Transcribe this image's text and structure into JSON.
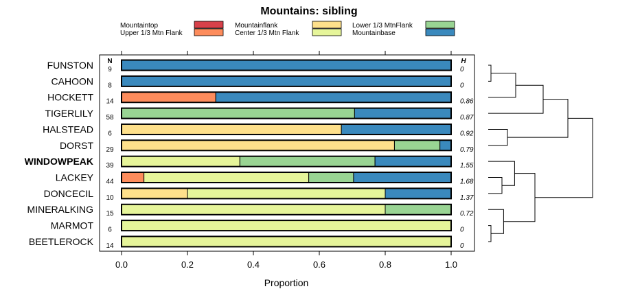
{
  "chart_data": {
    "type": "bar",
    "orientation": "horizontal",
    "stacked": true,
    "title": "Mountains: sibling",
    "xlabel": "Proportion",
    "xlim": [
      0,
      1
    ],
    "xticks": [
      "0.0",
      "0.2",
      "0.4",
      "0.6",
      "0.8",
      "1.0"
    ],
    "xtick_values": [
      0,
      0.2,
      0.4,
      0.6,
      0.8,
      1.0
    ],
    "n_header": "N",
    "h_header": "H",
    "legend": [
      {
        "name": "Mountaintop",
        "color": "#d7404a"
      },
      {
        "name": "Upper 1/3 Mtn Flank",
        "color": "#fd8c5c"
      },
      {
        "name": "Mountainflank",
        "color": "#fee08b"
      },
      {
        "name": "Center 1/3 Mtn Flank",
        "color": "#e6f59a"
      },
      {
        "name": "Lower 1/3 MtnFlank",
        "color": "#99d493"
      },
      {
        "name": "Mountainbase",
        "color": "#3a89bd"
      }
    ],
    "categories": [
      "FUNSTON",
      "CAHOON",
      "HOCKETT",
      "TIGERLILY",
      "HALSTEAD",
      "DORST",
      "WINDOWPEAK",
      "LACKEY",
      "DONCECIL",
      "MINERALKING",
      "MARMOT",
      "BEETLEROCK"
    ],
    "highlighted": "WINDOWPEAK",
    "N": [
      "9",
      "8",
      "14",
      "58",
      "6",
      "29",
      "39",
      "44",
      "10",
      "15",
      "6",
      "14"
    ],
    "H": [
      "0",
      "0",
      "0.86",
      "0.87",
      "0.92",
      "0.79",
      "1.55",
      "1.68",
      "1.37",
      "0.72",
      "0",
      "0"
    ],
    "series": [
      {
        "name": "Mountaintop",
        "values": [
          0,
          0,
          0,
          0,
          0,
          0,
          0,
          0,
          0,
          0,
          0,
          0
        ]
      },
      {
        "name": "Upper 1/3 Mtn Flank",
        "values": [
          0,
          0,
          0.286,
          0,
          0,
          0,
          0,
          0.068,
          0,
          0,
          0,
          0
        ]
      },
      {
        "name": "Mountainflank",
        "values": [
          0,
          0,
          0,
          0,
          0.667,
          0.828,
          0,
          0,
          0.2,
          0,
          0,
          0
        ]
      },
      {
        "name": "Center 1/3 Mtn Flank",
        "values": [
          0,
          0,
          0,
          0,
          0,
          0,
          0.359,
          0.5,
          0.6,
          0.8,
          1,
          1
        ]
      },
      {
        "name": "Lower 1/3 MtnFlank",
        "values": [
          0,
          0,
          0,
          0.707,
          0,
          0.138,
          0.41,
          0.136,
          0,
          0.2,
          0,
          0
        ]
      },
      {
        "name": "Mountainbase",
        "values": [
          1,
          1,
          0.714,
          0.293,
          0.333,
          0.034,
          0.231,
          0.296,
          0.2,
          0,
          0,
          0
        ]
      }
    ],
    "dendrogram": {
      "order": [
        "FUNSTON",
        "CAHOON",
        "HOCKETT",
        "TIGERLILY",
        "HALSTEAD",
        "DORST",
        "WINDOWPEAK",
        "LACKEY",
        "DONCECIL",
        "MINERALKING",
        "MARMOT",
        "BEETLEROCK"
      ],
      "merges": [
        {
          "a": "FUNSTON",
          "b": "CAHOON",
          "height": 0.05
        },
        {
          "a": "#0",
          "b": "HOCKETT",
          "height": 0.5
        },
        {
          "a": "#1",
          "b": "TIGERLILY",
          "height": 1.0
        },
        {
          "a": "HALSTEAD",
          "b": "DORST",
          "height": 0.35
        },
        {
          "a": "#2",
          "b": "#3",
          "height": 1.45
        },
        {
          "a": "LACKEY",
          "b": "DONCECIL",
          "height": 0.25
        },
        {
          "a": "WINDOWPEAK",
          "b": "#5",
          "height": 0.48
        },
        {
          "a": "MARMOT",
          "b": "BEETLEROCK",
          "height": 0.05
        },
        {
          "a": "MINERALKING",
          "b": "#7",
          "height": 0.28
        },
        {
          "a": "#6",
          "b": "#8",
          "height": 0.85
        },
        {
          "a": "#4",
          "b": "#9",
          "height": 1.9
        }
      ]
    }
  }
}
